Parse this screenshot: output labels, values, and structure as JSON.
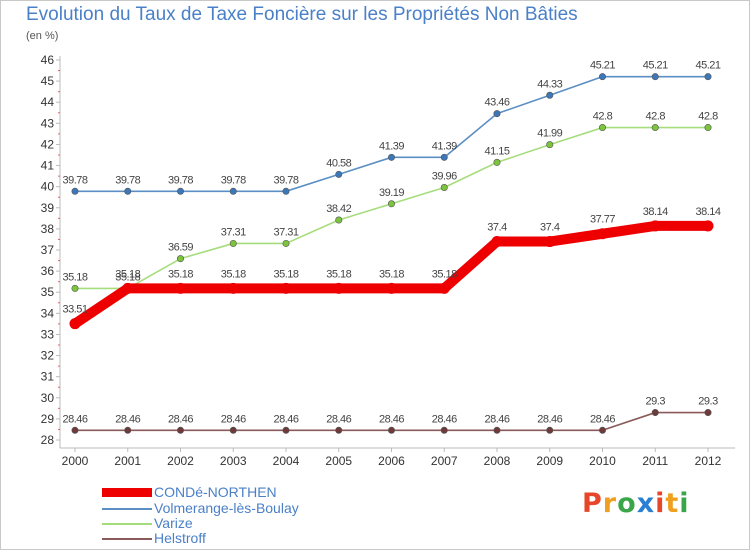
{
  "title": "Evolution du Taux de Taxe Foncière sur les Propriétés Non Bâties",
  "subtitle": "(en %)",
  "logo": {
    "text": "Proxiti",
    "letters": [
      {
        "ch": "P",
        "color": "#e8462a"
      },
      {
        "ch": "r",
        "color": "#f0a020"
      },
      {
        "ch": "o",
        "color": "#3aa64a"
      },
      {
        "ch": "x",
        "color": "#2a7fd4"
      },
      {
        "ch": "i",
        "color": "#e8462a"
      },
      {
        "ch": "t",
        "color": "#f0a020"
      },
      {
        "ch": "i",
        "color": "#3aa64a"
      }
    ]
  },
  "chart_data": {
    "type": "line",
    "x": [
      "2000",
      "2001",
      "2002",
      "2003",
      "2004",
      "2005",
      "2006",
      "2007",
      "2008",
      "2009",
      "2010",
      "2011",
      "2012"
    ],
    "ylim": [
      28,
      46
    ],
    "yticks": [
      28,
      29,
      30,
      31,
      32,
      33,
      34,
      35,
      36,
      37,
      38,
      39,
      40,
      41,
      42,
      43,
      44,
      45,
      46
    ],
    "grid": false,
    "legend_placement": "bottom-left",
    "series": [
      {
        "name": "Volmerange-lès-Boulay",
        "color": "#5b8fc4",
        "marker_color": "#3c78b8",
        "values": [
          39.78,
          39.78,
          39.78,
          39.78,
          39.78,
          40.58,
          41.39,
          41.39,
          43.46,
          44.33,
          45.21,
          45.21,
          45.21
        ],
        "labels": [
          "39.78",
          "39.78",
          "39.78",
          "39.78",
          "39.78",
          "40.58",
          "41.39",
          "41.39",
          "43.46",
          "44.33",
          "45.21",
          "45.21",
          "45.21"
        ],
        "bold": false
      },
      {
        "name": "Varize",
        "color": "#a6dd7c",
        "marker_color": "#7cc43c",
        "values": [
          35.18,
          35.18,
          36.59,
          37.31,
          37.31,
          38.42,
          39.19,
          39.96,
          41.15,
          41.99,
          42.8,
          42.8,
          42.8
        ],
        "labels": [
          "35.18",
          "35.18",
          "36.59",
          "37.31",
          "37.31",
          "38.42",
          "39.19",
          "39.96",
          "41.15",
          "41.99",
          "42.8",
          "42.8",
          "42.8"
        ],
        "bold": false
      },
      {
        "name": "Helstroff",
        "color": "#8a5a5a",
        "marker_color": "#6e3a3a",
        "values": [
          28.46,
          28.46,
          28.46,
          28.46,
          28.46,
          28.46,
          28.46,
          28.46,
          28.46,
          28.46,
          28.46,
          29.3,
          29.3
        ],
        "labels": [
          "28.46",
          "28.46",
          "28.46",
          "28.46",
          "28.46",
          "28.46",
          "28.46",
          "28.46",
          "28.46",
          "28.46",
          "28.46",
          "29.3",
          "29.3"
        ],
        "bold": false
      },
      {
        "name": "CONDé-NORTHEN",
        "color": "#ee0000",
        "marker_color": "#ee0000",
        "values": [
          33.51,
          35.18,
          35.18,
          35.18,
          35.18,
          35.18,
          35.18,
          35.18,
          37.4,
          37.4,
          37.77,
          38.14,
          38.14
        ],
        "labels": [
          "33.51",
          "35.18",
          "35.18",
          "35.18",
          "35.18",
          "35.18",
          "35.18",
          "35.18",
          "37.4",
          "37.4",
          "37.77",
          "38.14",
          "38.14"
        ],
        "bold": true
      }
    ],
    "legend": [
      "CONDé-NORTHEN",
      "Volmerange-lès-Boulay",
      "Varize",
      "Helstroff"
    ]
  }
}
